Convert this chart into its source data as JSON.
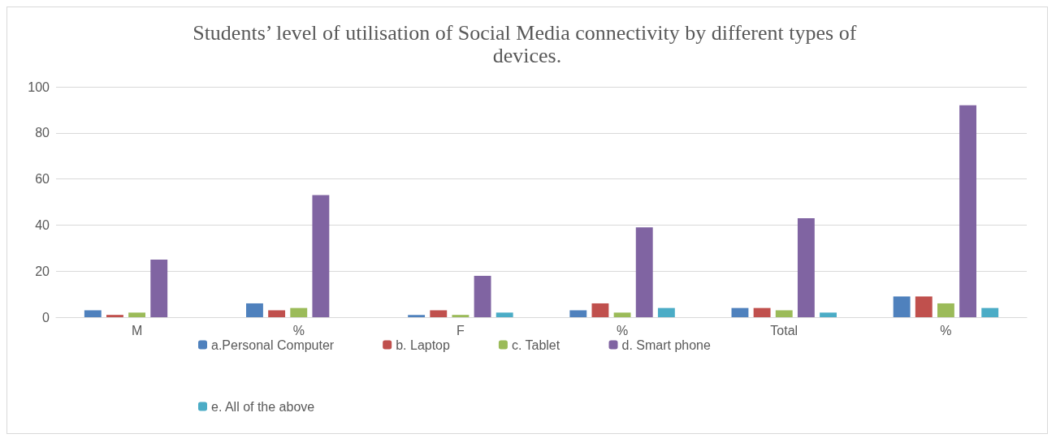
{
  "chart_data": {
    "type": "bar",
    "title": "Students’ level of utilisation of Social Media connectivity by different types of devices.",
    "categories": [
      "M",
      "%",
      "F",
      "%",
      "Total",
      "%"
    ],
    "series": [
      {
        "name": "a.Personal Computer",
        "color": "#4f81bd",
        "values": [
          3,
          6,
          1,
          3,
          4,
          9
        ]
      },
      {
        "name": "b. Laptop",
        "color": "#c0504d",
        "values": [
          1,
          3,
          3,
          6,
          4,
          9
        ]
      },
      {
        "name": "c. Tablet",
        "color": "#9bbb59",
        "values": [
          2,
          4,
          1,
          2,
          3,
          6
        ]
      },
      {
        "name": "d. Smart phone",
        "color": "#8064a2",
        "values": [
          25,
          53,
          18,
          39,
          43,
          92
        ]
      },
      {
        "name": "e. All of the above",
        "color": "#4bacc6",
        "values": [
          0,
          0,
          2,
          4,
          2,
          4
        ]
      }
    ],
    "ylim": [
      0,
      100
    ],
    "yticks": [
      0,
      20,
      40,
      60,
      80,
      100
    ],
    "grid": "y",
    "legend": "bottom"
  }
}
